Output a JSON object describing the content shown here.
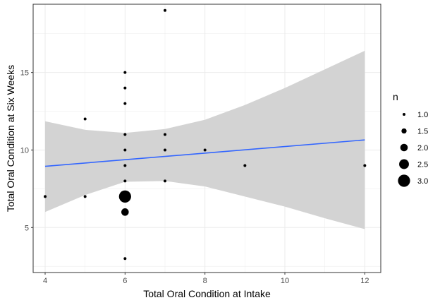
{
  "chart_data": {
    "type": "scatter",
    "xlabel": "Total Oral Condition at Intake",
    "ylabel": "Total Oral Condition at Six Weeks",
    "xlim": [
      3.7,
      12.4
    ],
    "ylim": [
      2.1,
      19.4
    ],
    "x_ticks": [
      4,
      6,
      8,
      10,
      12
    ],
    "y_ticks": [
      5,
      10,
      15
    ],
    "grid": true,
    "legend": {
      "title": "n",
      "position": "right",
      "entries": [
        {
          "label": "1.0",
          "value": 1.0
        },
        {
          "label": "1.5",
          "value": 1.5
        },
        {
          "label": "2.0",
          "value": 2.0
        },
        {
          "label": "2.5",
          "value": 2.5
        },
        {
          "label": "3.0",
          "value": 3.0
        }
      ]
    },
    "points": [
      {
        "x": 4,
        "y": 7,
        "n": 1
      },
      {
        "x": 5,
        "y": 12,
        "n": 1
      },
      {
        "x": 5,
        "y": 7,
        "n": 1
      },
      {
        "x": 6,
        "y": 15,
        "n": 1
      },
      {
        "x": 6,
        "y": 14,
        "n": 1
      },
      {
        "x": 6,
        "y": 13,
        "n": 1
      },
      {
        "x": 6,
        "y": 11,
        "n": 1
      },
      {
        "x": 6,
        "y": 10,
        "n": 1
      },
      {
        "x": 6,
        "y": 9,
        "n": 1
      },
      {
        "x": 6,
        "y": 8,
        "n": 1
      },
      {
        "x": 6,
        "y": 7,
        "n": 3
      },
      {
        "x": 6,
        "y": 6,
        "n": 2
      },
      {
        "x": 6,
        "y": 3,
        "n": 1
      },
      {
        "x": 7,
        "y": 19,
        "n": 1
      },
      {
        "x": 7,
        "y": 11,
        "n": 1
      },
      {
        "x": 7,
        "y": 10,
        "n": 1
      },
      {
        "x": 7,
        "y": 8,
        "n": 1
      },
      {
        "x": 8,
        "y": 10,
        "n": 1
      },
      {
        "x": 9,
        "y": 9,
        "n": 1
      },
      {
        "x": 12,
        "y": 9,
        "n": 1
      }
    ],
    "trend_line": {
      "x": [
        4,
        12
      ],
      "y": [
        8.95,
        10.65
      ],
      "color": "#3366FF"
    },
    "confidence_band": {
      "x": [
        4,
        5,
        6,
        7,
        8,
        9,
        10,
        11,
        12
      ],
      "upper": [
        11.85,
        11.3,
        11.1,
        11.35,
        11.95,
        12.9,
        14.0,
        15.2,
        16.4
      ],
      "lower": [
        6.0,
        7.1,
        7.95,
        8.0,
        7.65,
        7.0,
        6.35,
        5.6,
        4.9
      ],
      "color": "#d3d3d3"
    }
  }
}
